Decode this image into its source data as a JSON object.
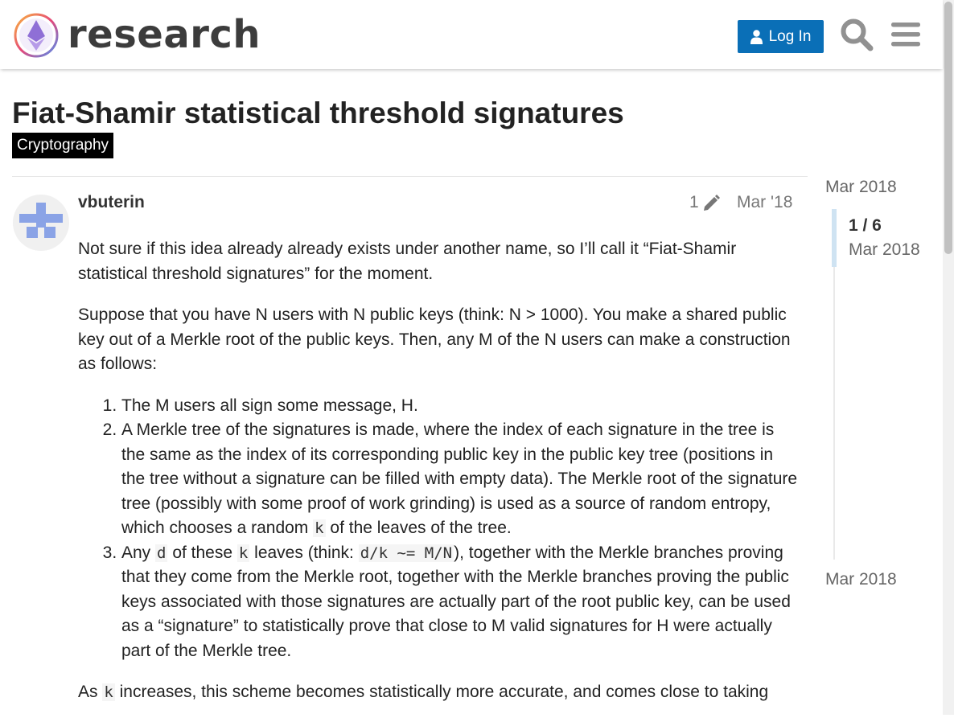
{
  "header": {
    "site_name": "research",
    "login_label": "Log In"
  },
  "topic": {
    "title": "Fiat-Shamir statistical threshold signatures",
    "category": "Cryptography"
  },
  "post": {
    "username": "vbuterin",
    "edit_count": "1",
    "date": "Mar '18",
    "p1": "Not sure if this idea already already exists under another name, so I’ll call it “Fiat-Shamir statistical threshold signatures” for the moment.",
    "p2": "Suppose that you have N users with N public keys (think: N > 1000). You make a shared public key out of a Merkle root of the public keys. Then, any M of the N users can make a construction as follows:",
    "li1": "The M users all sign some message, H.",
    "li2_a": "A Merkle tree of the signatures is made, where the index of each signature in the tree is the same as the index of its corresponding public key in the public key tree (positions in the tree without a signature can be filled with empty data). The Merkle root of the signature tree (possibly with some proof of work grinding) is used as a source of random entropy, which chooses a random ",
    "li2_code": "k",
    "li2_b": " of the leaves of the tree.",
    "li3_a": "Any ",
    "li3_code1": "d",
    "li3_b": " of these ",
    "li3_code2": "k",
    "li3_c": " leaves (think: ",
    "li3_code3": "d/k ~= M/N",
    "li3_d": "), together with the Merkle branches proving that they come from the Merkle root, together with the Merkle branches proving the public keys associated with those signatures are actually part of the root public key, can be used as a “signature” to statistically prove that close to M valid signatures for H were actually part of the Merkle tree.",
    "p3_a": "As ",
    "p3_code": "k",
    "p3_b": " increases, this scheme becomes statistically more accurate, and comes close to taking"
  },
  "timeline": {
    "start_date": "Mar 2018",
    "position": "1 / 6",
    "position_date": "Mar 2018",
    "end_date": "Mar 2018"
  },
  "icons": [
    "logo-icon",
    "user-icon",
    "search-icon",
    "hamburger-menu-icon",
    "avatar-icon",
    "pencil-icon"
  ],
  "colors": {
    "accent": "#0a6fb7",
    "category_bg": "#000000",
    "avatar": "#8aa3e6"
  }
}
